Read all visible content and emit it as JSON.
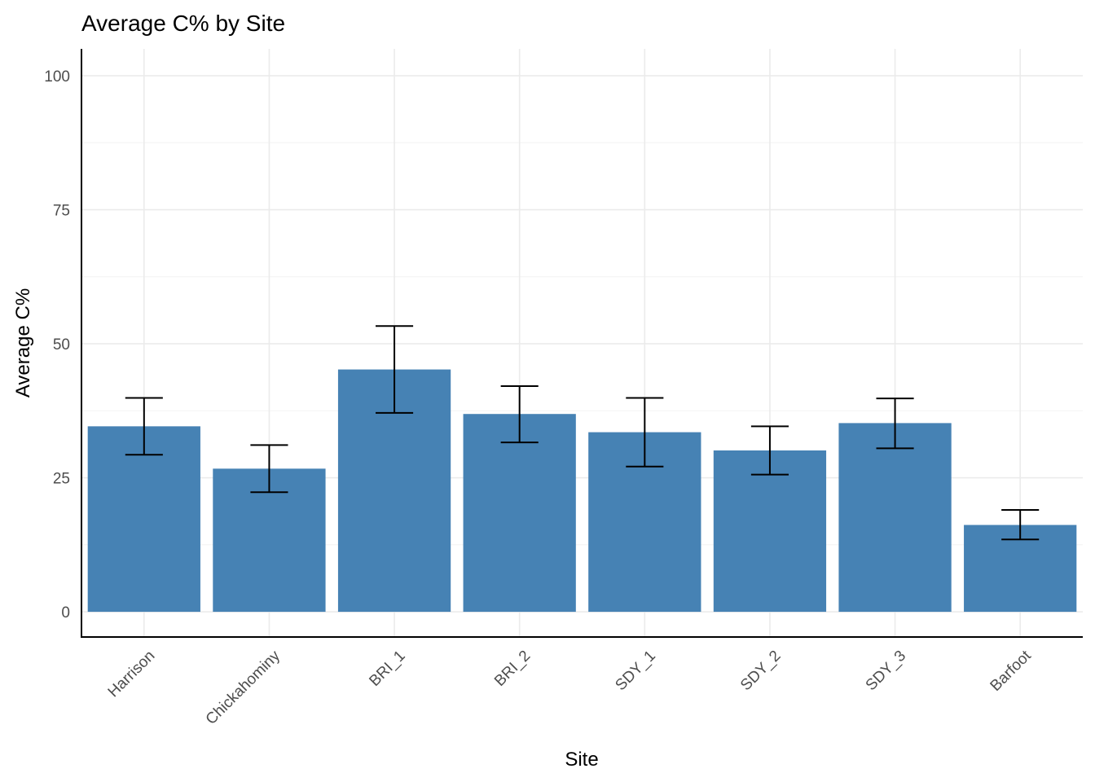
{
  "chart_data": {
    "type": "bar",
    "title": "Average C% by Site",
    "xlabel": "Site",
    "ylabel": "Average C%",
    "categories": [
      "Harrison",
      "Chickahominy",
      "BRI_1",
      "BRI_2",
      "SDY_1",
      "SDY_2",
      "SDY_3",
      "Barfoot"
    ],
    "values": [
      34.6,
      26.7,
      45.2,
      36.9,
      33.5,
      30.1,
      35.2,
      16.2
    ],
    "error_low": [
      29.3,
      22.3,
      37.1,
      31.6,
      27.1,
      25.6,
      30.5,
      13.5
    ],
    "error_high": [
      39.9,
      31.1,
      53.3,
      42.1,
      39.9,
      34.6,
      39.8,
      19.0
    ],
    "ylim": [
      -4.7,
      105
    ],
    "yticks": [
      0,
      25,
      50,
      75,
      100
    ],
    "ytick_labels": [
      "0",
      "25",
      "50",
      "75",
      "100"
    ],
    "bar_color": "#4682b4",
    "grid": true,
    "legend": "none"
  }
}
